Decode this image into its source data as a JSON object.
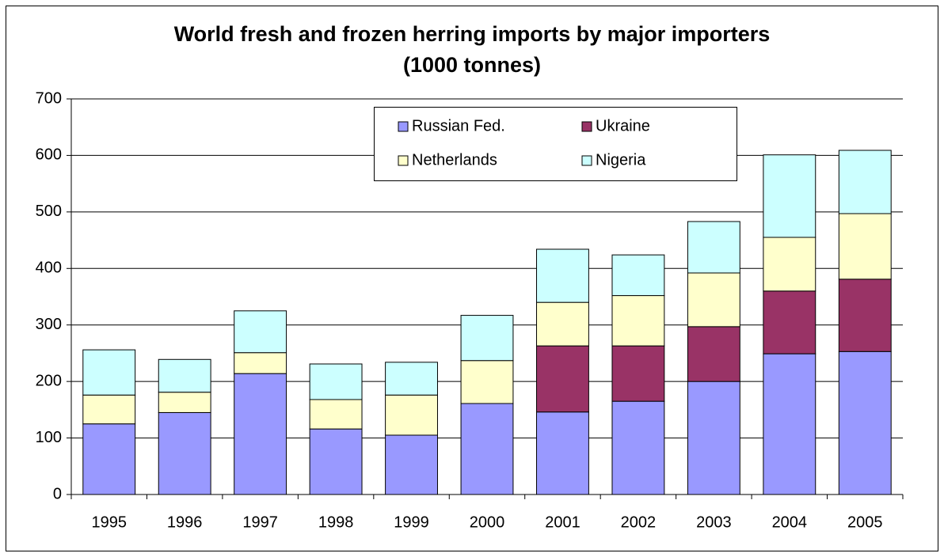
{
  "chart_data": {
    "type": "stacked_bar",
    "title": "World fresh and frozen herring imports by major importers",
    "subtitle": "(1000 tonnes)",
    "categories": [
      "1995",
      "1996",
      "1997",
      "1998",
      "1999",
      "2000",
      "2001",
      "2002",
      "2003",
      "2004",
      "2005"
    ],
    "series": [
      {
        "name": "Russian Fed.",
        "color": "#9999ff",
        "values": [
          125,
          145,
          214,
          116,
          105,
          161,
          146,
          165,
          200,
          249,
          253
        ]
      },
      {
        "name": "Ukraine",
        "color": "#993366",
        "values": [
          0,
          0,
          0,
          0,
          0,
          0,
          117,
          98,
          97,
          111,
          128
        ]
      },
      {
        "name": "Netherlands",
        "color": "#ffffcc",
        "values": [
          51,
          36,
          37,
          52,
          71,
          76,
          77,
          89,
          95,
          95,
          116
        ]
      },
      {
        "name": "Nigeria",
        "color": "#ccffff",
        "values": [
          80,
          58,
          74,
          63,
          58,
          80,
          94,
          72,
          91,
          146,
          112
        ]
      }
    ],
    "ylim": [
      0,
      700
    ],
    "yticks": [
      0,
      100,
      200,
      300,
      400,
      500,
      600,
      700
    ],
    "grid": true
  }
}
